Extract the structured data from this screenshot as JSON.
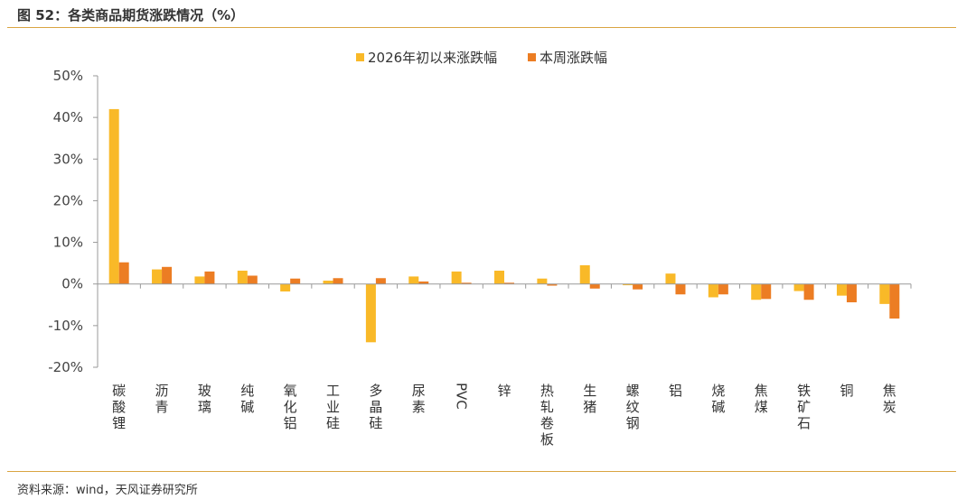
{
  "header": {
    "title": "图 52：各类商品期货涨跌情况（%）"
  },
  "footer": {
    "source": "资料来源：wind，天风证券研究所"
  },
  "colors": {
    "ytd": "#f9b928",
    "week": "#ec7d23",
    "rule": "#d9a441",
    "axis": "#999999"
  },
  "chart_data": {
    "type": "bar",
    "title": "图 52：各类商品期货涨跌情况（%）",
    "xlabel": "",
    "ylabel": "",
    "ylim": [
      -20,
      50
    ],
    "yticks": [
      50,
      40,
      30,
      20,
      10,
      0,
      -10,
      -20
    ],
    "ytick_labels": [
      "50%",
      "40%",
      "30%",
      "20%",
      "10%",
      "0%",
      "-10%",
      "-20%"
    ],
    "legend_position": "top-center",
    "grid": false,
    "categories": [
      "碳酸锂",
      "沥青",
      "玻璃",
      "纯碱",
      "氧化铝",
      "工业硅",
      "多晶硅",
      "尿素",
      "PVC",
      "锌",
      "热轧卷板",
      "生猪",
      "螺纹钢",
      "铝",
      "烧碱",
      "焦煤",
      "铁矿石",
      "铜",
      "焦炭"
    ],
    "series": [
      {
        "name": "2026年初以来涨跌幅",
        "values": [
          42.0,
          3.5,
          1.8,
          3.2,
          -1.8,
          0.8,
          -14.0,
          1.8,
          3.0,
          3.2,
          1.3,
          4.5,
          -0.3,
          2.5,
          -3.2,
          -3.8,
          -1.7,
          -2.8,
          -4.8
        ]
      },
      {
        "name": "本周涨跌幅",
        "values": [
          5.2,
          4.1,
          3.0,
          2.0,
          1.3,
          1.4,
          1.4,
          0.6,
          0.3,
          0.3,
          -0.4,
          -1.1,
          -1.3,
          -2.5,
          -2.5,
          -3.6,
          -3.8,
          -4.4,
          -8.3
        ]
      }
    ]
  }
}
